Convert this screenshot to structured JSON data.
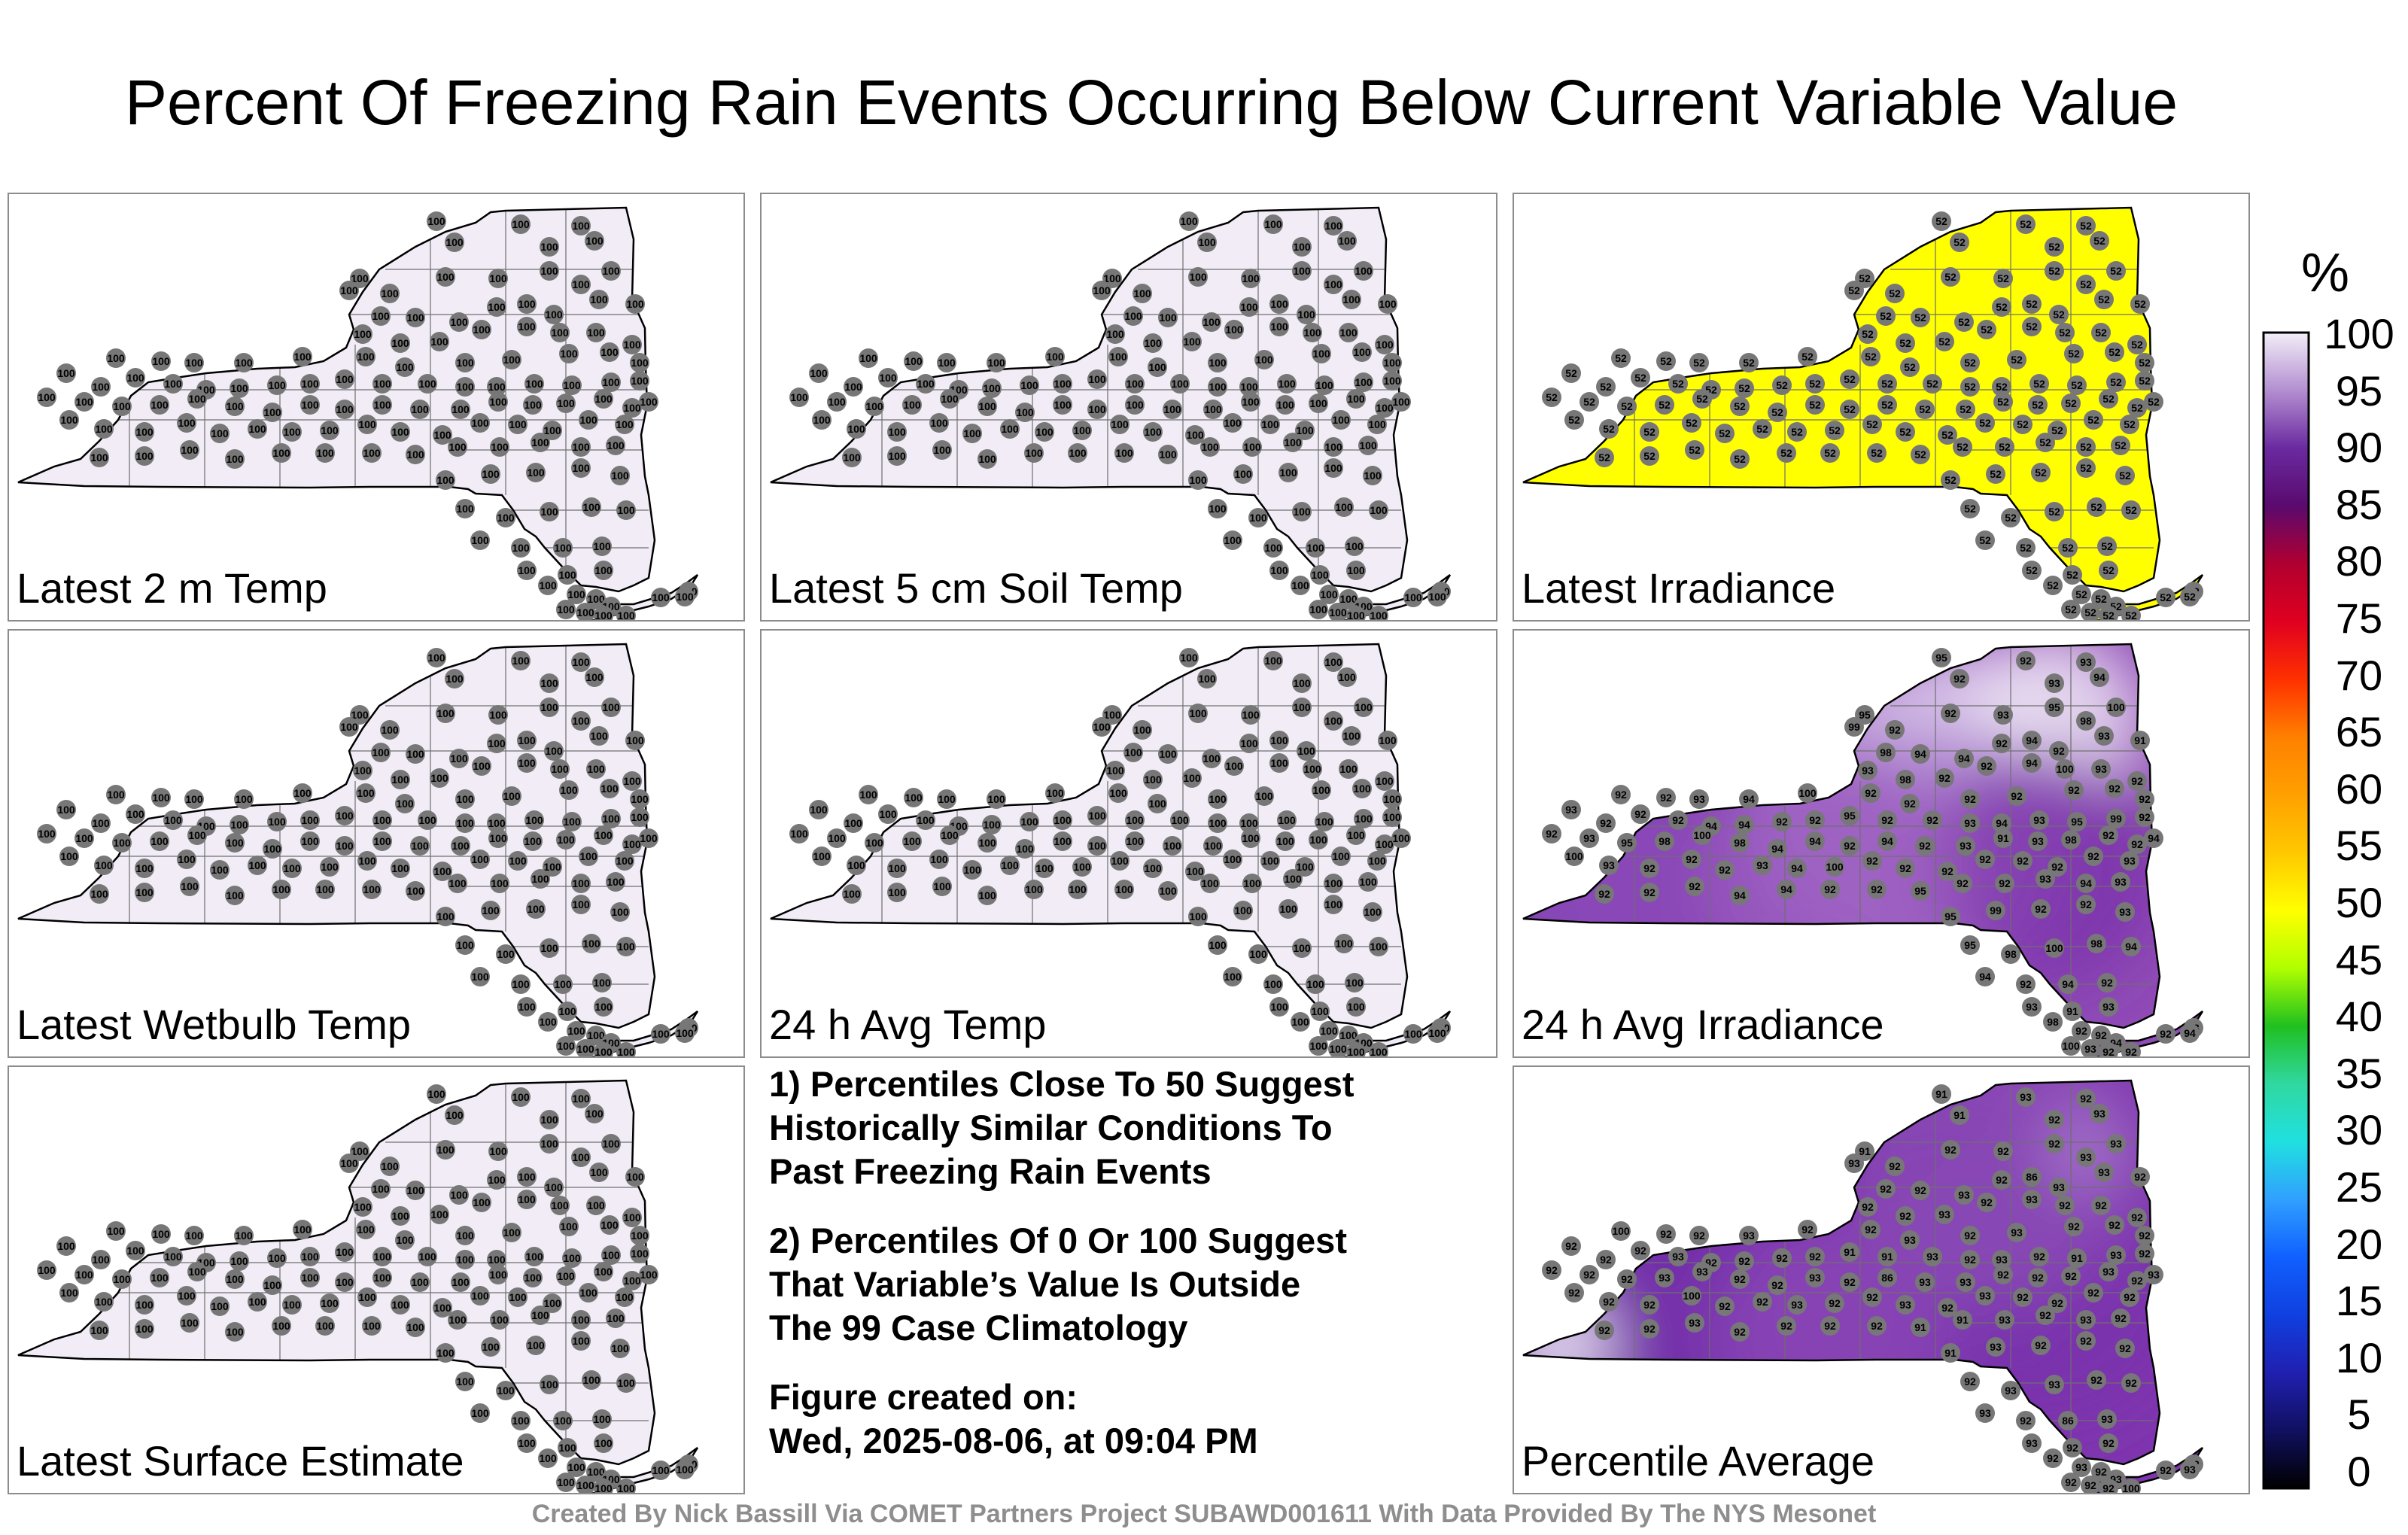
{
  "title": "Percent Of Freezing Rain Events Occurring Below Current Variable Value",
  "panels": [
    {
      "id": "p1",
      "label": "Latest 2 m Temp",
      "fill": "#f1ecf6",
      "value": 100
    },
    {
      "id": "p2",
      "label": "Latest 5 cm Soil Temp",
      "fill": "#f1ecf6",
      "value": 100
    },
    {
      "id": "p3",
      "label": "Latest Irradiance",
      "fill": "#ffff00",
      "value": 52
    },
    {
      "id": "p4",
      "label": "Latest Wetbulb Temp",
      "fill": "#f1ecf6",
      "value": 100
    },
    {
      "id": "p5",
      "label": "24 h Avg Temp",
      "fill": "#f1ecf6",
      "value": 100
    },
    {
      "id": "p6",
      "label": "24 h Avg Irradiance",
      "fill": "#8f4bb6",
      "value": 93
    },
    {
      "id": "p7",
      "label": "Latest Surface Estimate",
      "fill": "#f1ecf6",
      "value": 100
    },
    {
      "id": "p8",
      "label": "Percentile Average",
      "fill": "#7f35ae",
      "value": 92
    }
  ],
  "station_values": {
    "p6": [
      95,
      92,
      92,
      93,
      94,
      93,
      95,
      99,
      92,
      92,
      93,
      95,
      98,
      100,
      98,
      94,
      94,
      92,
      94,
      92,
      93,
      91,
      93,
      98,
      92,
      92,
      94,
      100,
      93,
      92,
      92,
      92,
      93,
      94,
      100,
      92,
      92,
      92,
      92,
      92,
      92,
      92,
      93,
      92,
      92,
      92,
      94,
      94,
      92,
      92
    ],
    "p8": [
      91,
      91,
      93,
      92,
      93,
      92,
      91,
      93,
      92,
      92,
      92,
      92,
      93,
      93,
      92,
      92,
      93,
      92,
      86,
      93,
      93,
      92,
      92,
      92,
      93,
      92,
      93,
      92,
      92,
      92,
      100,
      92,
      92,
      93,
      92,
      92,
      93,
      92,
      93,
      92,
      92,
      92,
      92,
      92,
      92,
      93,
      92,
      92,
      92,
      92
    ]
  },
  "notes": {
    "n1_l1": "1) Percentiles Close To 50 Suggest",
    "n1_l2": "Historically Similar Conditions To",
    "n1_l3": "Past Freezing Rain Events",
    "n2_l1": "2) Percentiles Of 0 Or 100 Suggest",
    "n2_l2": "That Variable’s Value Is Outside",
    "n2_l3": "The 99 Case Climatology",
    "created_label": "Figure created on:",
    "created_value": "Wed, 2025-08-06, at 09:04 PM"
  },
  "credit": "Created By Nick Bassill Via COMET Partners Project SUBAWD001611 With Data Provided By The NYS Mesonet",
  "colorbar": {
    "unit": "%",
    "ticks": [
      "100",
      "95",
      "90",
      "85",
      "80",
      "75",
      "70",
      "65",
      "60",
      "55",
      "50",
      "45",
      "40",
      "35",
      "30",
      "25",
      "20",
      "15",
      "10",
      "5",
      "0"
    ],
    "stops": [
      "#f2eef8",
      "#b38ed0",
      "#6a2aa0",
      "#5a0a6e",
      "#b00030",
      "#e00020",
      "#ff3000",
      "#ff8000",
      "#ffa000",
      "#ffc800",
      "#ffff00",
      "#b0ff00",
      "#20c020",
      "#30d8a0",
      "#20e0e0",
      "#30a0ff",
      "#1060ff",
      "#1040e0",
      "#2020b0",
      "#101060",
      "#000000"
    ]
  }
}
